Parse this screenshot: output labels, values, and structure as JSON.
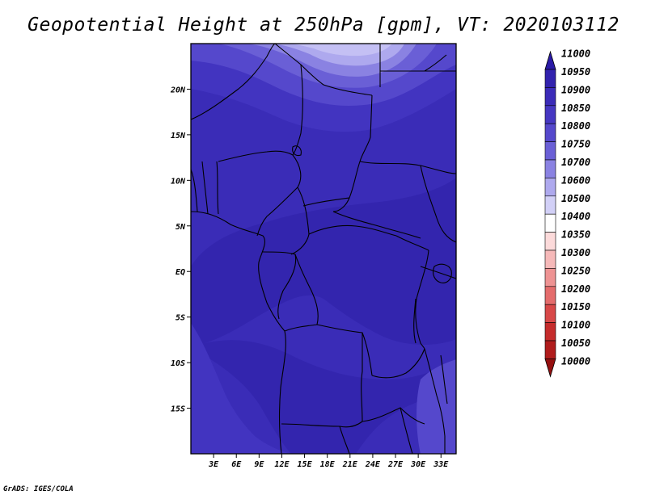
{
  "title": "Geopotential Height at 250hPa [gpm], VT: 2020103112",
  "footer": "GrADS: IGES/COLA",
  "map": {
    "lon_range": [
      0,
      35
    ],
    "lat_range": [
      -20,
      25
    ],
    "lat_ticks": [
      {
        "value": 20,
        "label": "20N"
      },
      {
        "value": 15,
        "label": "15N"
      },
      {
        "value": 10,
        "label": "10N"
      },
      {
        "value": 5,
        "label": "5N"
      },
      {
        "value": 0,
        "label": "EQ"
      },
      {
        "value": -5,
        "label": "5S"
      },
      {
        "value": -10,
        "label": "10S"
      },
      {
        "value": -15,
        "label": "15S"
      }
    ],
    "lon_ticks": [
      {
        "value": 3,
        "label": "3E"
      },
      {
        "value": 6,
        "label": "6E"
      },
      {
        "value": 9,
        "label": "9E"
      },
      {
        "value": 12,
        "label": "12E"
      },
      {
        "value": 15,
        "label": "15E"
      },
      {
        "value": 18,
        "label": "18E"
      },
      {
        "value": 21,
        "label": "21E"
      },
      {
        "value": 24,
        "label": "24E"
      },
      {
        "value": 27,
        "label": "27E"
      },
      {
        "value": 30,
        "label": "30E"
      },
      {
        "value": 33,
        "label": "33E"
      }
    ]
  },
  "colorbar": {
    "levels": [
      "11000",
      "10950",
      "10900",
      "10850",
      "10800",
      "10750",
      "10700",
      "10600",
      "10500",
      "10400",
      "10350",
      "10300",
      "10250",
      "10200",
      "10150",
      "10100",
      "10050",
      "10000"
    ],
    "colors": [
      "#2a1aa6",
      "#3222ae",
      "#3b2bb8",
      "#4637c2",
      "#5548cc",
      "#6a5fd6",
      "#8a82e2",
      "#aea9ee",
      "#d2d0f7",
      "#ffffff",
      "#fcdada",
      "#f6b9b9",
      "#ee9393",
      "#e46c6c",
      "#d84848",
      "#c52c2c",
      "#b01c1c",
      "#951010"
    ]
  },
  "field_colors": {
    "base": "#3a2cb7",
    "dark": "#3325ae",
    "mid": "#4234c0",
    "light1": "#5548cc",
    "light2": "#6a5fd6",
    "light3": "#8a82e2",
    "light4": "#aea9ee",
    "light5": "#c4c0f4"
  }
}
